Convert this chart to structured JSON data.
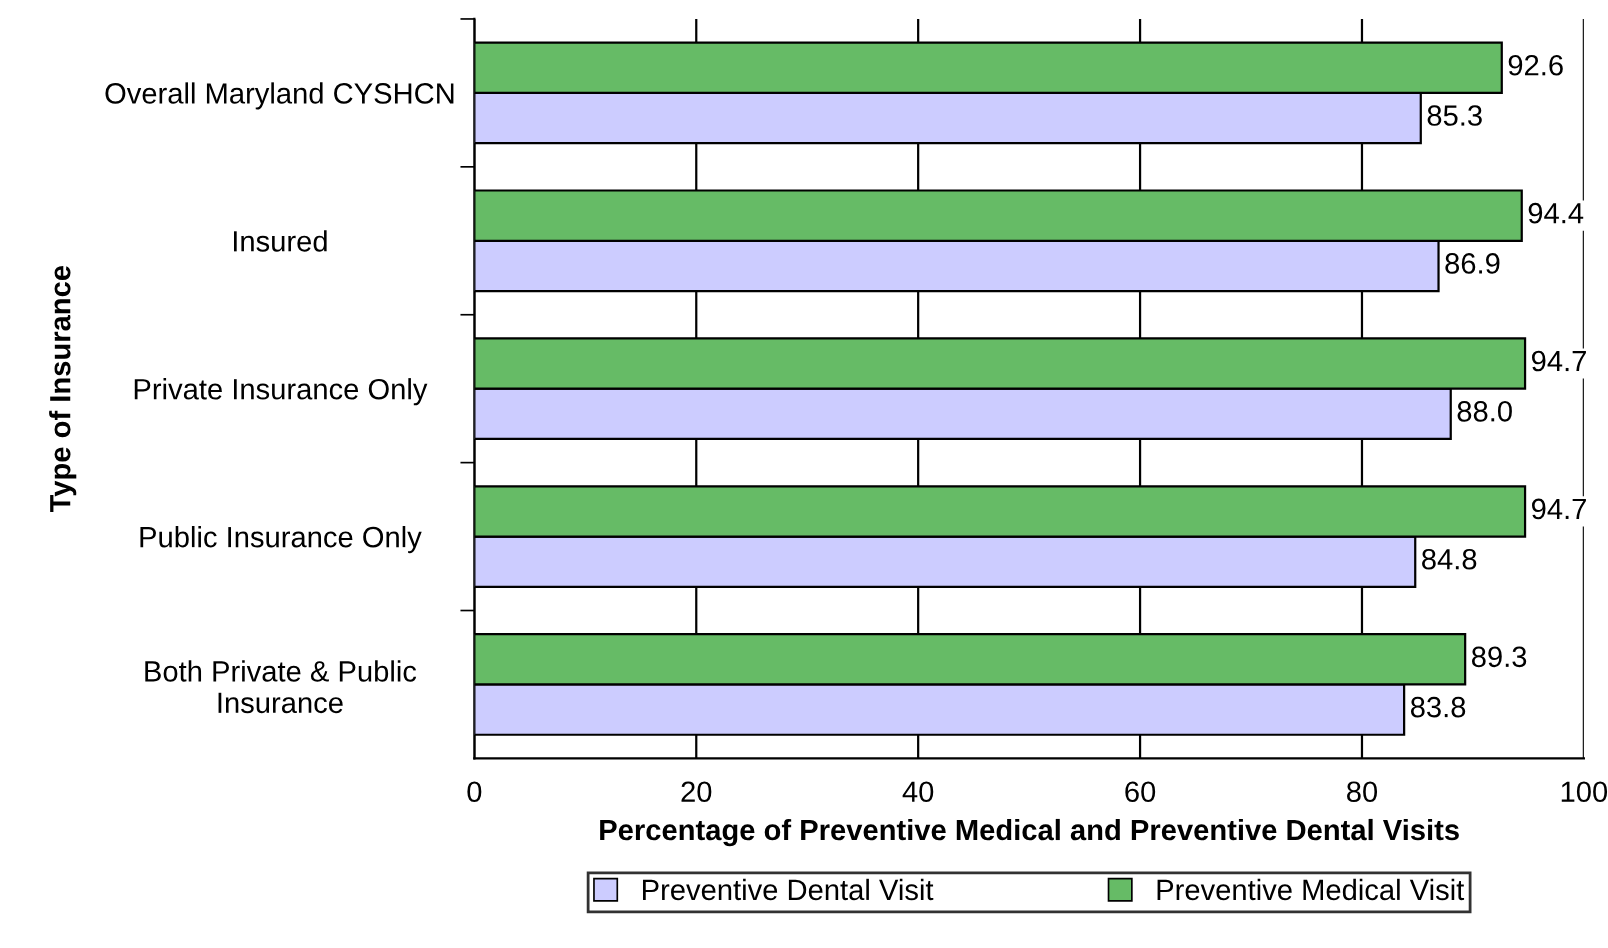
{
  "chart_data": {
    "type": "bar",
    "orientation": "horizontal",
    "xlabel": "Percentage of Preventive Medical and Preventive Dental Visits",
    "ylabel": "Type of Insurance",
    "categories": [
      "Overall Maryland CYSHCN",
      "Insured",
      "Private Insurance Only",
      "Public Insurance Only",
      "Both Private & Public\nInsurance"
    ],
    "series": [
      {
        "name": "Preventive Dental Visit",
        "color": "#ccccff",
        "values": [
          85.3,
          86.9,
          88.0,
          84.8,
          83.8
        ],
        "value_labels": [
          "85.3",
          "86.9",
          "88.0",
          "84.8",
          "83.8"
        ]
      },
      {
        "name": "Preventive Medical Visit",
        "color": "#66bb66",
        "values": [
          92.6,
          94.4,
          94.7,
          94.7,
          89.3
        ],
        "value_labels": [
          "92.6",
          "94.4",
          "94.7",
          "94.7",
          "89.3"
        ]
      }
    ],
    "xlim": [
      0,
      100
    ],
    "xticks": [
      0,
      20,
      40,
      60,
      80,
      100
    ],
    "grid": "x",
    "legend": "bottom"
  }
}
